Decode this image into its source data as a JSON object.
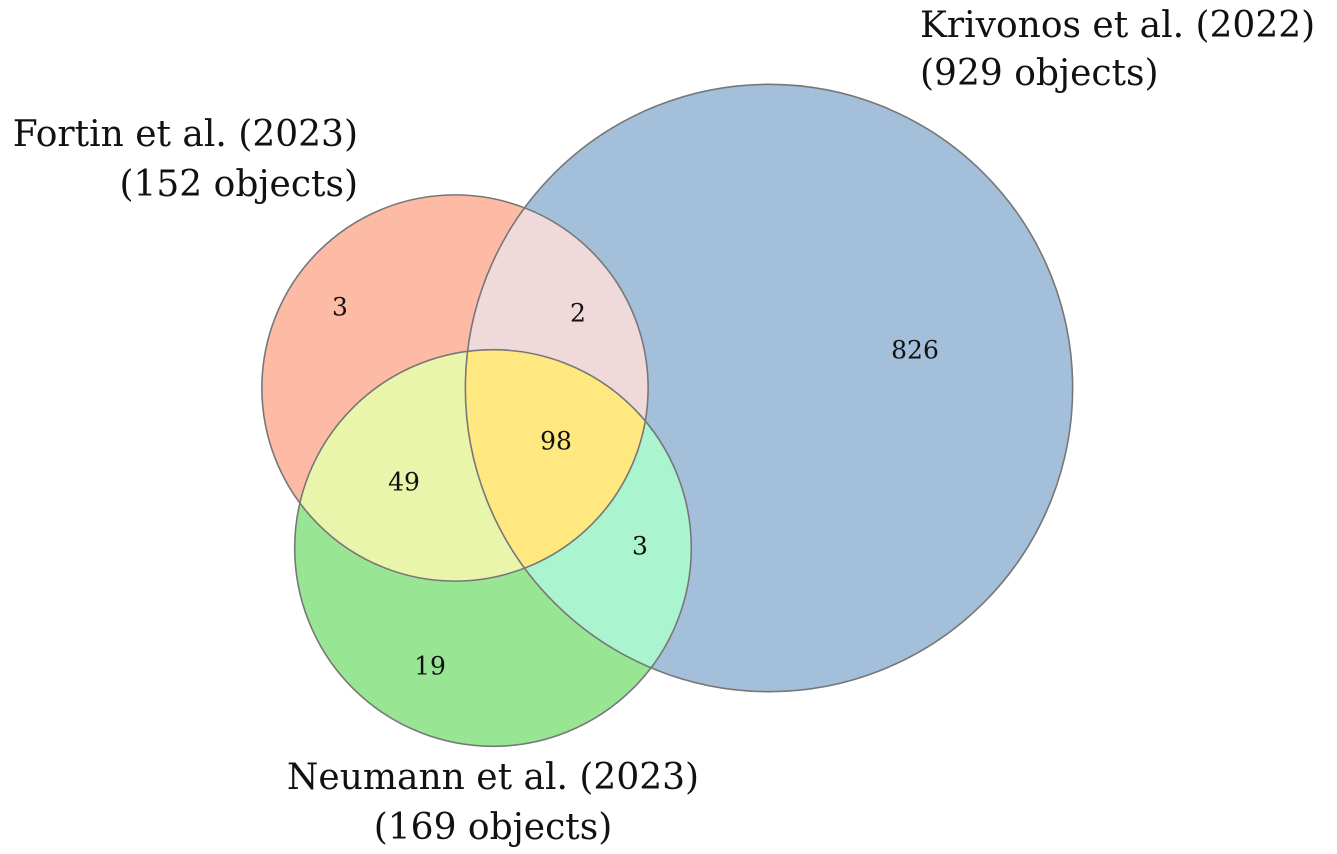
{
  "chart_data": {
    "type": "venn",
    "sets": [
      {
        "name": "Fortin et al. (2023)",
        "size": 152,
        "size_label": "(152 objects)"
      },
      {
        "name": "Krivonos et al. (2022)",
        "size": 929,
        "size_label": "(929 objects)"
      },
      {
        "name": "Neumann et al. (2023)",
        "size": 169,
        "size_label": "(169 objects)"
      }
    ],
    "regions": [
      {
        "sets": [
          "Fortin et al. (2023)"
        ],
        "value": 3,
        "color": "#fdbba5"
      },
      {
        "sets": [
          "Krivonos et al. (2022)"
        ],
        "value": 826,
        "color": "#a3bfd9"
      },
      {
        "sets": [
          "Neumann et al. (2023)"
        ],
        "value": 19,
        "color": "#98e593"
      },
      {
        "sets": [
          "Fortin et al. (2023)",
          "Krivonos et al. (2022)"
        ],
        "value": 2,
        "color": "#f0d9da"
      },
      {
        "sets": [
          "Fortin et al. (2023)",
          "Neumann et al. (2023)"
        ],
        "value": 49,
        "color": "#e9f5aa"
      },
      {
        "sets": [
          "Krivonos et al. (2022)",
          "Neumann et al. (2023)"
        ],
        "value": 3,
        "color": "#aaf4d0"
      },
      {
        "sets": [
          "Fortin et al. (2023)",
          "Krivonos et al. (2022)",
          "Neumann et al. (2023)"
        ],
        "value": 98,
        "color": "#ffe880"
      }
    ]
  }
}
